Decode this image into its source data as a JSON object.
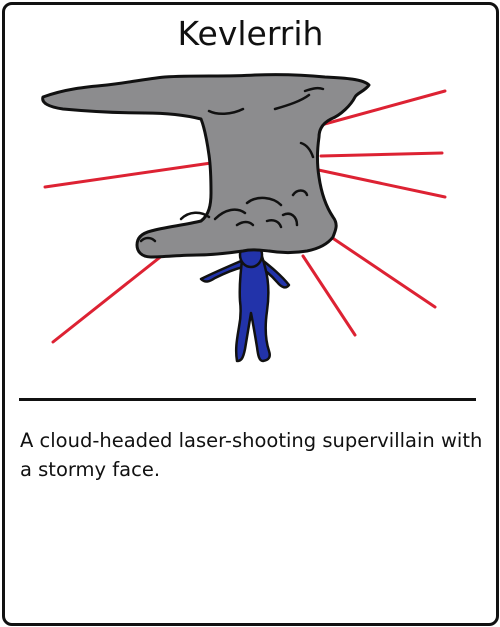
{
  "card": {
    "title": "Kevlerrih",
    "description": "A cloud-headed laser-shooting supervillain with a stormy face."
  },
  "illustration": {
    "icon": "cloud-headed-villain-illustration",
    "colors": {
      "cloud": "#8c8c8e",
      "outline": "#111111",
      "body": "#2233aa",
      "laser": "#dd2233"
    }
  }
}
